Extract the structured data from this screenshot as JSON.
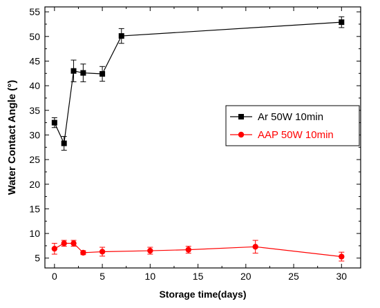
{
  "chart_data": {
    "type": "line",
    "title": "",
    "xlabel": "Storage time(days)",
    "ylabel": "Water Contact Angle (°)",
    "xlim": [
      -1,
      32
    ],
    "ylim": [
      3,
      56
    ],
    "xticks": [
      0,
      5,
      10,
      15,
      20,
      25,
      30
    ],
    "yticks": [
      5,
      10,
      15,
      20,
      25,
      30,
      35,
      40,
      45,
      50,
      55
    ],
    "grid": false,
    "legend_position": "right-center",
    "series": [
      {
        "name": "Ar 50W 10min",
        "color": "#000000",
        "marker": "square",
        "x": [
          0,
          1,
          2,
          3,
          5,
          7,
          30
        ],
        "y": [
          32.5,
          28.3,
          43.0,
          42.6,
          42.4,
          50.1,
          52.9
        ],
        "err": [
          1.0,
          1.4,
          2.2,
          1.8,
          1.5,
          1.5,
          1.1
        ]
      },
      {
        "name": "AAP 50W 10min",
        "color": "#ff0000",
        "marker": "circle",
        "x": [
          0,
          1,
          2,
          3,
          5,
          10,
          14,
          21,
          30
        ],
        "y": [
          6.9,
          8.0,
          8.0,
          6.1,
          6.3,
          6.5,
          6.7,
          7.3,
          5.3
        ],
        "err": [
          1.1,
          0.6,
          0.6,
          0.4,
          0.9,
          0.7,
          0.7,
          1.3,
          0.9
        ]
      }
    ]
  }
}
